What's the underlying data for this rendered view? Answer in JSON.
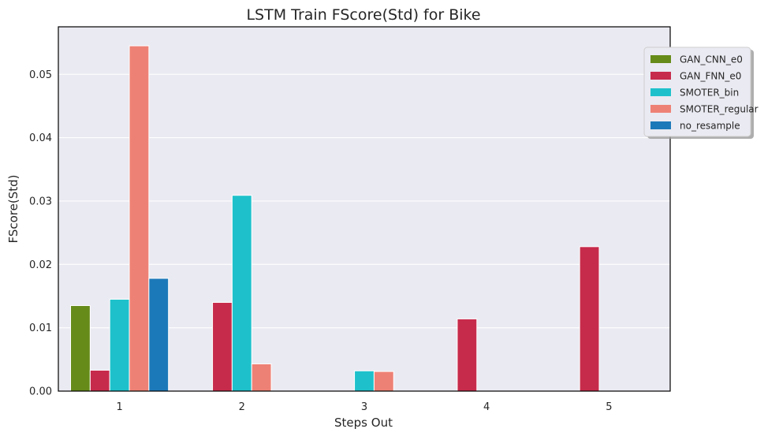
{
  "chart_data": {
    "type": "bar",
    "title": "LSTM Train FScore(Std) for Bike",
    "xlabel": "Steps Out",
    "ylabel": "FScore(Std)",
    "categories": [
      "1",
      "2",
      "3",
      "4",
      "5"
    ],
    "ylim": [
      0,
      0.0575
    ],
    "yticks": [
      0.0,
      0.01,
      0.02,
      0.03,
      0.04,
      0.05
    ],
    "ytick_labels": [
      "0.00",
      "0.01",
      "0.02",
      "0.03",
      "0.04",
      "0.05"
    ],
    "grid": true,
    "legend_position": "top-right",
    "series": [
      {
        "name": "GAN_CNN_e0",
        "color": "#668b19",
        "values": [
          0.0135,
          null,
          null,
          null,
          null
        ]
      },
      {
        "name": "GAN_FNN_e0",
        "color": "#c72b4b",
        "values": [
          0.0033,
          0.014,
          null,
          0.0114,
          0.0228
        ]
      },
      {
        "name": "SMOTER_bin",
        "color": "#1ec1cb",
        "values": [
          0.0145,
          0.0309,
          0.0032,
          null,
          null
        ]
      },
      {
        "name": "SMOTER_regular",
        "color": "#ee8175",
        "values": [
          0.0545,
          0.0043,
          0.0031,
          null,
          null
        ]
      },
      {
        "name": "no_resample",
        "color": "#1c79b9",
        "values": [
          0.0178,
          null,
          null,
          null,
          null
        ]
      }
    ]
  }
}
